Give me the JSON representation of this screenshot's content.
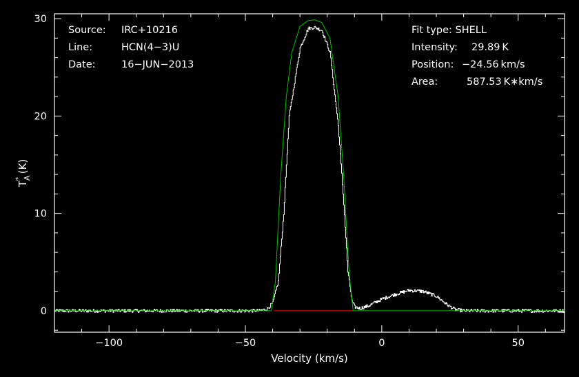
{
  "header_left": {
    "source_label": "Source:",
    "source_value": "IRC+10216",
    "line_label": "Line:",
    "line_value": "HCN(4−3)U",
    "date_label": "Date:",
    "date_value": "16−JUN−2013"
  },
  "header_right": {
    "fit_type": "Fit type: SHELL",
    "intensity_label": "Intensity:",
    "intensity_value": "29.89 K",
    "position_label": "Position:",
    "position_value": "−24.56 km/s",
    "area_label": "Area:",
    "area_value": "587.53 K∗km/s"
  },
  "colors": {
    "background": "#000000",
    "axes": "#ffffff",
    "spectrum": "#ffffff",
    "fit": "#00c000",
    "baseline": "#ff0000"
  },
  "chart_data": {
    "type": "line",
    "xlabel": "Velocity (km/s)",
    "ylabel": "T*A (K)",
    "xlim": [
      -120,
      67
    ],
    "ylim": [
      -2.2,
      30.5
    ],
    "xticks": [
      -100,
      -50,
      0,
      50
    ],
    "xtick_labels": [
      "−100",
      "−50",
      "0",
      "50"
    ],
    "yticks": [
      0,
      10,
      20,
      30
    ],
    "ytick_labels": [
      "0",
      "10",
      "20",
      "30"
    ],
    "grid": false,
    "fit_parameters": {
      "type": "SHELL",
      "intensity_K": 29.89,
      "center_kms": -24.56,
      "area_K_kms": 587.53
    },
    "series": [
      {
        "kind": "spectrum",
        "x": [
          -120,
          -80,
          -60,
          -45,
          -42,
          -40,
          -38,
          -36,
          -34,
          -30,
          -27,
          -24.56,
          -22,
          -19,
          -16,
          -14,
          -12.5,
          -11,
          -10,
          -8,
          -5,
          0,
          5,
          10,
          15,
          20,
          24,
          27,
          30,
          40,
          50,
          67
        ],
        "y": [
          0,
          0,
          0,
          0,
          0.2,
          0.8,
          3,
          10,
          20,
          27,
          29,
          29.1,
          28.8,
          26.5,
          19,
          11,
          4,
          1,
          0.4,
          0.25,
          0.5,
          1.2,
          1.7,
          2.1,
          2.0,
          1.5,
          0.6,
          0.1,
          0,
          0,
          0,
          0
        ]
      },
      {
        "kind": "fit",
        "x": [
          -120,
          -42,
          -40.5,
          -39,
          -37,
          -35,
          -33,
          -30,
          -27,
          -24.56,
          -22,
          -19,
          -16,
          -14,
          -12,
          -10.5,
          -9,
          67
        ],
        "y": [
          0,
          0,
          0,
          3,
          14,
          22,
          26.5,
          29.2,
          29.8,
          29.89,
          29.6,
          28,
          22,
          14,
          4,
          0,
          0,
          0
        ]
      },
      {
        "kind": "baseline",
        "x": [
          -39.5,
          -10.5
        ],
        "y": [
          0,
          0
        ]
      }
    ]
  }
}
